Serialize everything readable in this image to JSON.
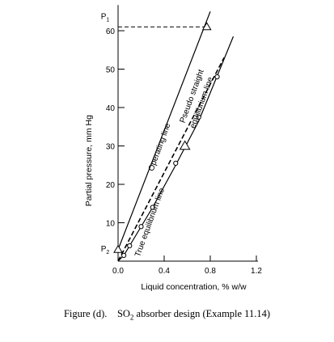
{
  "caption": {
    "prefix": "Figure (d).",
    "text_before_sub": "SO",
    "subscript": "2",
    "text_after_sub": " absorber design (Example 11.14)"
  },
  "chart_data": {
    "type": "line",
    "title": "",
    "xlabel": "Liquid concentration,  % w/w",
    "ylabel": "Partial pressure, mm Hg",
    "xlim": [
      0,
      1.2
    ],
    "ylim": [
      0,
      65
    ],
    "x_ticks": [
      0.0,
      0.4,
      0.8,
      1.2
    ],
    "x_tick_labels": [
      "0.0",
      "0.4",
      "0.8",
      "1.2"
    ],
    "y_ticks": [
      10,
      20,
      30,
      40,
      50,
      60
    ],
    "y_tick_labels": [
      "10",
      "20",
      "30",
      "40",
      "50",
      "60"
    ],
    "grid": false,
    "special_y_labels": [
      {
        "label": "P",
        "subscript": "1",
        "y": 61
      },
      {
        "label": "P",
        "subscript": "2",
        "y": 3
      }
    ],
    "reference_line": {
      "y": 61,
      "x_range": [
        0,
        0.77
      ],
      "style": "dashed"
    },
    "series": [
      {
        "name": "Operating line",
        "style": "solid",
        "x": [
          0.0,
          0.8
        ],
        "y": [
          3,
          65
        ],
        "marker_points": [
          {
            "x": 0.0,
            "y": 3,
            "marker": "triangle"
          },
          {
            "x": 0.77,
            "y": 61,
            "marker": "triangle"
          }
        ]
      },
      {
        "name": "True equilibrium line",
        "style": "solid",
        "x": [
          0.0,
          0.05,
          0.1,
          0.2,
          0.3,
          0.5,
          0.7,
          1.0
        ],
        "y": [
          0,
          1.5,
          4,
          9,
          14,
          25,
          36.5,
          58.5
        ],
        "marker_points": [
          {
            "x": 0.05,
            "y": 1.5,
            "marker": "circle"
          },
          {
            "x": 0.1,
            "y": 4,
            "marker": "circle"
          },
          {
            "x": 0.2,
            "y": 9,
            "marker": "circle"
          },
          {
            "x": 0.3,
            "y": 14,
            "marker": "circle"
          },
          {
            "x": 0.5,
            "y": 25.5,
            "marker": "circle"
          },
          {
            "x": 0.7,
            "y": 37.5,
            "marker": "circle"
          },
          {
            "x": 0.86,
            "y": 48,
            "marker": "circle"
          }
        ]
      },
      {
        "name": "Pseudo straight equilibrium line",
        "style": "dashed",
        "x": [
          0.0,
          0.92
        ],
        "y": [
          0,
          53
        ]
      }
    ],
    "annotations": [
      {
        "text": "Operating line",
        "rotation_deg": -70
      },
      {
        "text": "True equilibrium line",
        "rotation_deg": -70
      },
      {
        "text": "Pseudo straight",
        "rotation_deg": -70
      },
      {
        "text": "equilibrium line",
        "rotation_deg": -70
      }
    ],
    "triangle_marker_near": {
      "x": 0.58,
      "y": 30
    }
  }
}
